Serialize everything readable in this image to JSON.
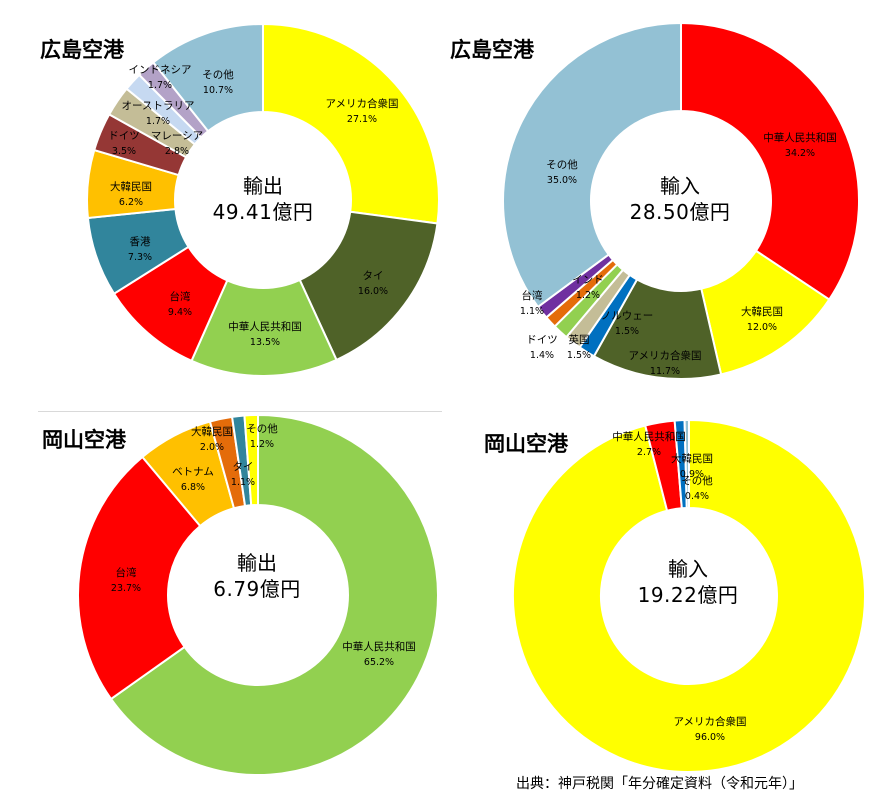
{
  "source": "出典：神戸税関「年分確定資料（令和元年）」",
  "chart_data": [
    {
      "type": "pie",
      "title": "広島空港",
      "center_label": "輸出",
      "total": "49.41億円",
      "slices": [
        {
          "label": "アメリカ合衆国",
          "pct_text": "27.1%",
          "value": 27.1,
          "color": "#ffff00"
        },
        {
          "label": "タイ",
          "pct_text": "16.0%",
          "value": 16.0,
          "color": "#4f6228"
        },
        {
          "label": "中華人民共和国",
          "pct_text": "13.5%",
          "value": 13.5,
          "color": "#92d050"
        },
        {
          "label": "台湾",
          "pct_text": "9.4%",
          "value": 9.4,
          "color": "#ff0000"
        },
        {
          "label": "香港",
          "pct_text": "7.3%",
          "value": 7.3,
          "color": "#31859c"
        },
        {
          "label": "大韓民国",
          "pct_text": "6.2%",
          "value": 6.2,
          "color": "#ffc000"
        },
        {
          "label": "ドイツ",
          "pct_text": "3.5%",
          "value": 3.5,
          "color": "#953735"
        },
        {
          "label": "マレーシア",
          "pct_text": "2.8%",
          "value": 2.8,
          "color": "#c4bd97"
        },
        {
          "label": "オーストラリア",
          "pct_text": "1.7%",
          "value": 1.7,
          "color": "#c6d9f1"
        },
        {
          "label": "インドネシア",
          "pct_text": "1.7%",
          "value": 1.7,
          "color": "#b3a2c7"
        },
        {
          "label": "その他",
          "pct_text": "10.7%",
          "value": 10.7,
          "color": "#93c1d4"
        }
      ]
    },
    {
      "type": "pie",
      "title": "広島空港",
      "center_label": "輸入",
      "total": "28.50億円",
      "slices": [
        {
          "label": "中華人民共和国",
          "pct_text": "34.2%",
          "value": 34.2,
          "color": "#ff0000"
        },
        {
          "label": "大韓民国",
          "pct_text": "12.0%",
          "value": 12.0,
          "color": "#ffff00"
        },
        {
          "label": "アメリカ合衆国",
          "pct_text": "11.7%",
          "value": 11.7,
          "color": "#4f6228"
        },
        {
          "label": "ノルウェー",
          "pct_text": "1.5%",
          "value": 1.5,
          "color": "#0070c0"
        },
        {
          "label": "英国",
          "pct_text": "1.5%",
          "value": 1.5,
          "color": "#c4bd97"
        },
        {
          "label": "ドイツ",
          "pct_text": "1.4%",
          "value": 1.4,
          "color": "#92d050"
        },
        {
          "label": "台湾",
          "pct_text": "1.1%",
          "value": 1.1,
          "color": "#e46c0a"
        },
        {
          "label": "インド",
          "pct_text": "1.2%",
          "value": 1.2,
          "color": "#7030a0"
        },
        {
          "label": "その他",
          "pct_text": "35.0%",
          "value": 35.0,
          "color": "#93c1d4"
        }
      ]
    },
    {
      "type": "pie",
      "title": "岡山空港",
      "center_label": "輸出",
      "total": "6.79億円",
      "slices": [
        {
          "label": "中華人民共和国",
          "pct_text": "65.2%",
          "value": 65.2,
          "color": "#92d050"
        },
        {
          "label": "台湾",
          "pct_text": "23.7%",
          "value": 23.7,
          "color": "#ff0000"
        },
        {
          "label": "ベトナム",
          "pct_text": "6.8%",
          "value": 6.8,
          "color": "#ffc000"
        },
        {
          "label": "大韓民国",
          "pct_text": "2.0%",
          "value": 2.0,
          "color": "#e46c0a"
        },
        {
          "label": "タイ",
          "pct_text": "1.1%",
          "value": 1.1,
          "color": "#31859c"
        },
        {
          "label": "その他",
          "pct_text": "1.2%",
          "value": 1.2,
          "color": "#ffff00"
        }
      ]
    },
    {
      "type": "pie",
      "title": "岡山空港",
      "center_label": "輸入",
      "total": "19.22億円",
      "slices": [
        {
          "label": "アメリカ合衆国",
          "pct_text": "96.0%",
          "value": 96.0,
          "color": "#ffff00"
        },
        {
          "label": "中華人民共和国",
          "pct_text": "2.7%",
          "value": 2.7,
          "color": "#ff0000"
        },
        {
          "label": "大韓民国",
          "pct_text": "0.9%",
          "value": 0.9,
          "color": "#0070c0"
        },
        {
          "label": "その他",
          "pct_text": "0.4%",
          "value": 0.4,
          "color": "#93c1d4"
        }
      ]
    }
  ]
}
